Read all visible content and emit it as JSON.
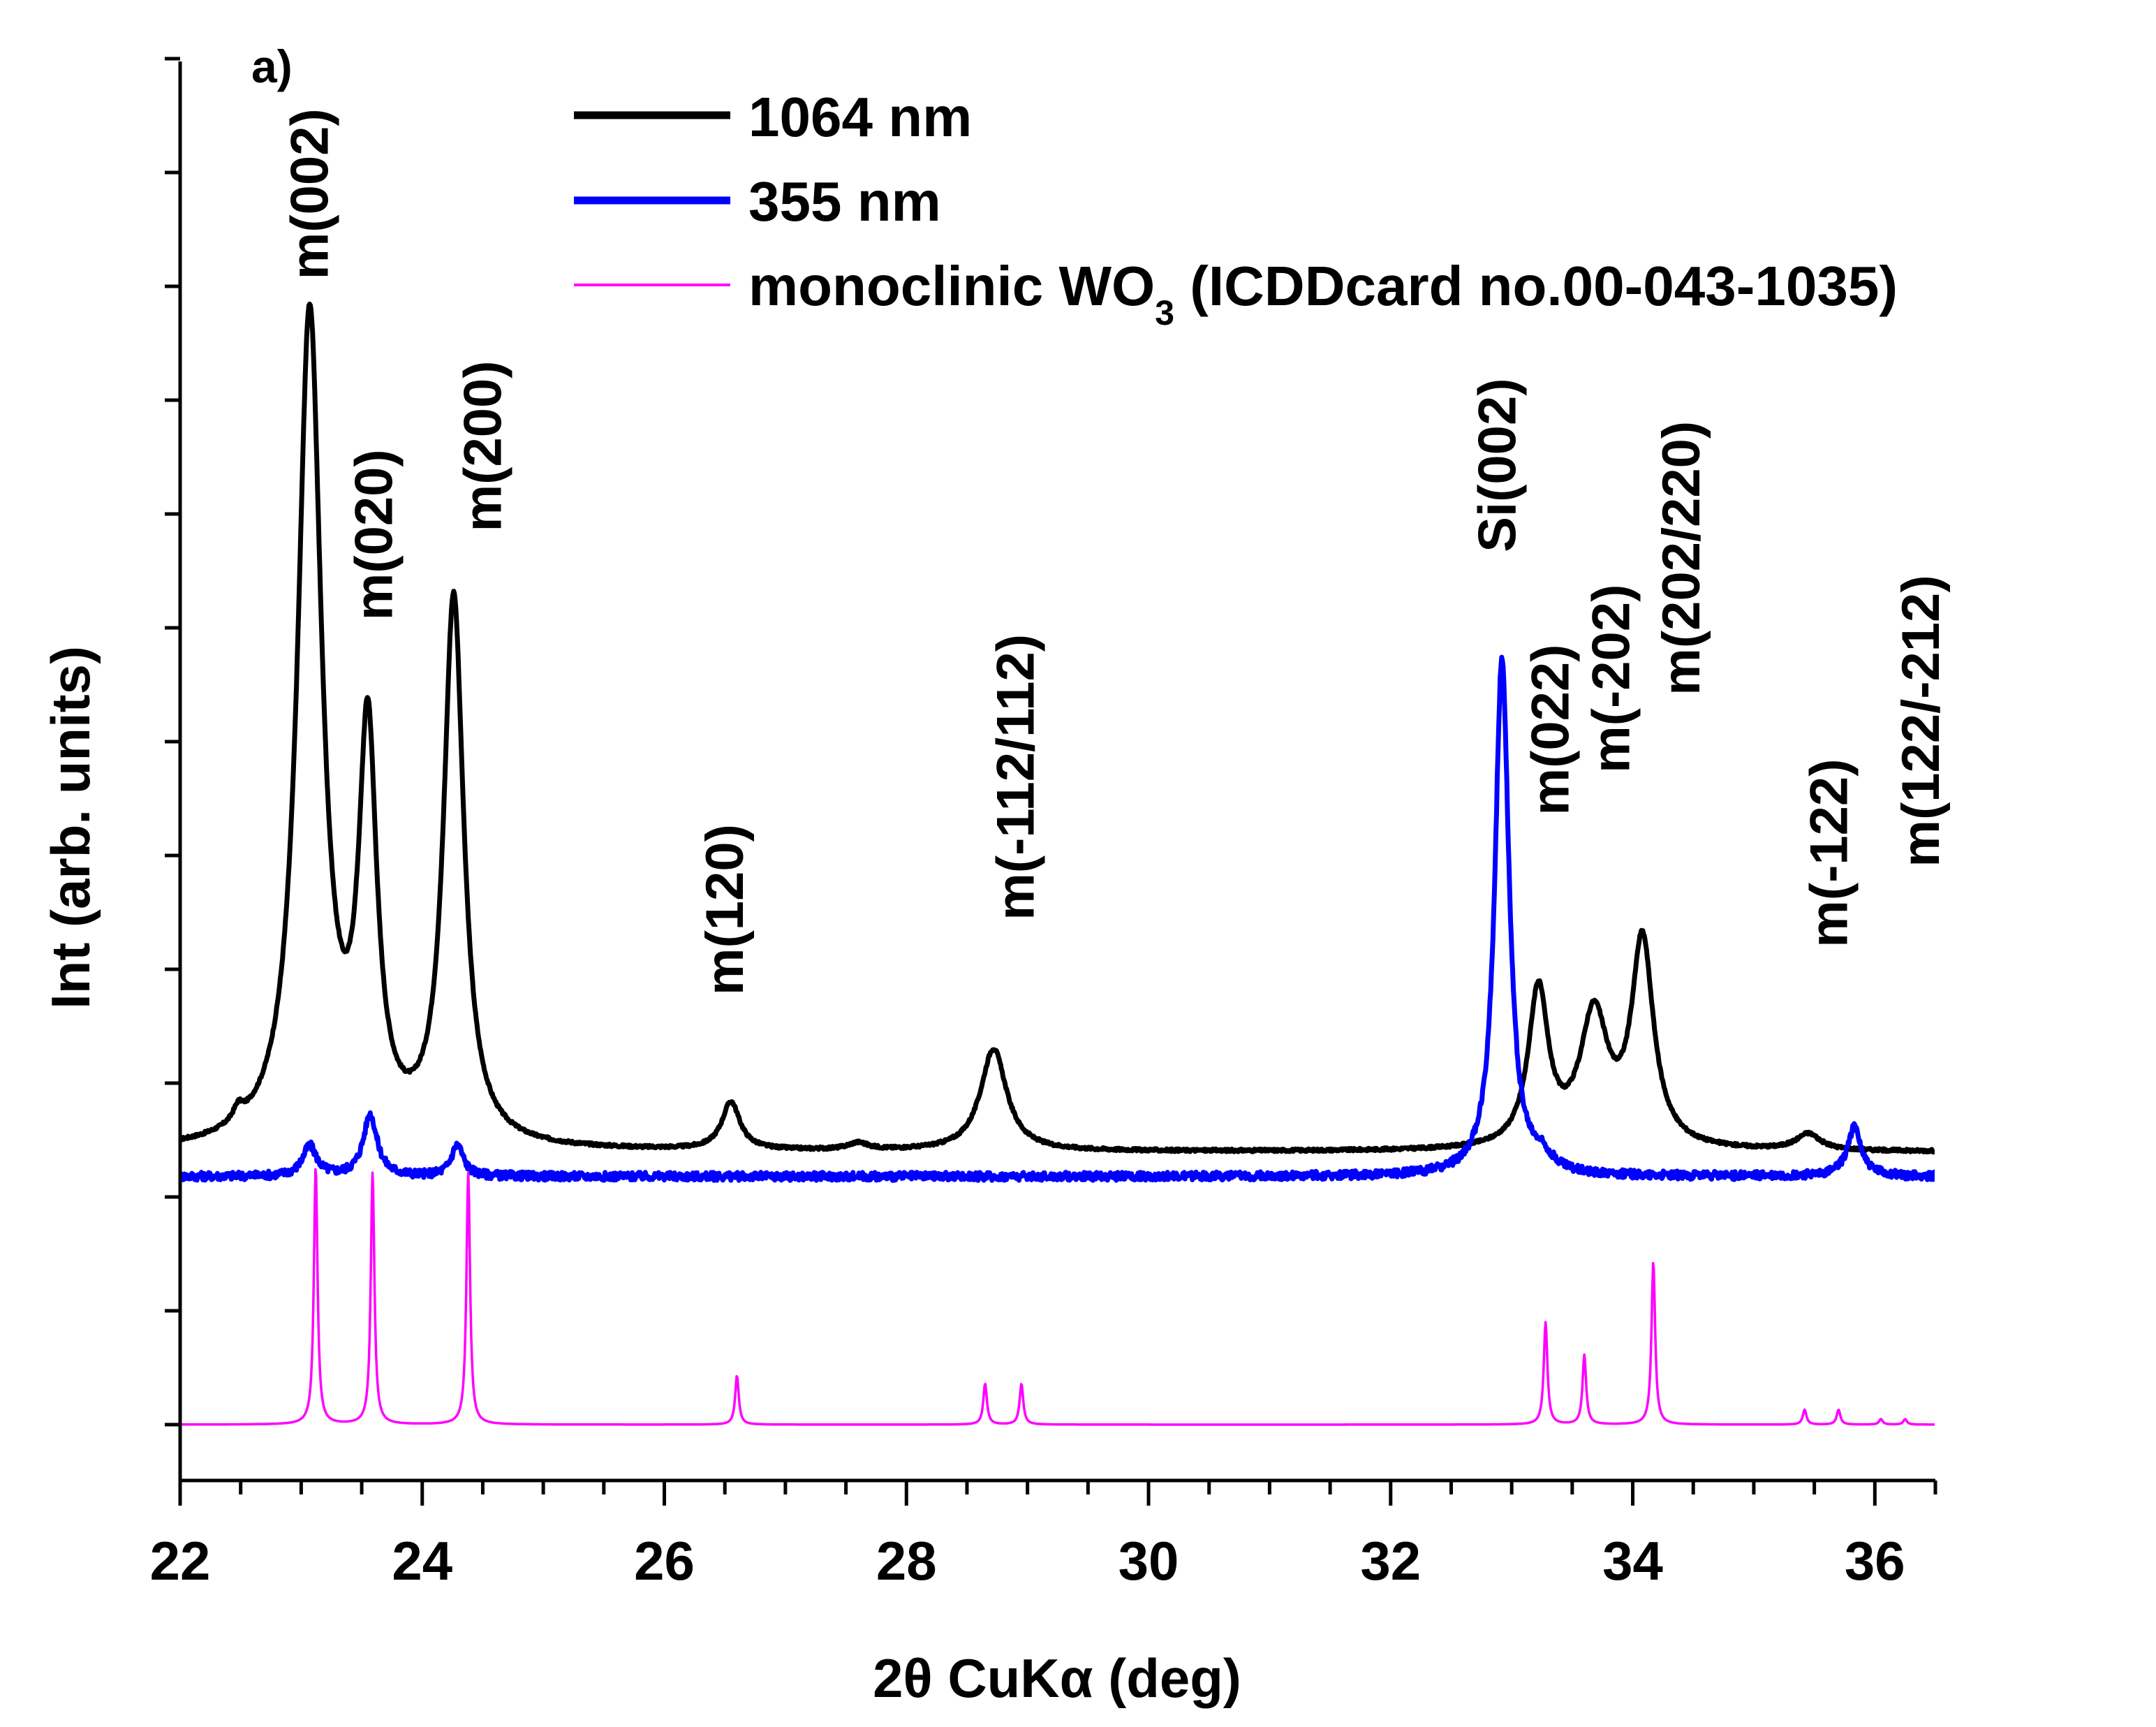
{
  "chart_data": {
    "type": "line",
    "panel_label": "a)",
    "xlabel": "2θ  CuKα (deg)",
    "ylabel": "Int (arb. units)",
    "xlim": [
      22,
      36.5
    ],
    "ylim": [
      0,
      1
    ],
    "x_ticks": [
      "22",
      "24",
      "26",
      "28",
      "30",
      "32",
      "34",
      "36"
    ],
    "legend": [
      {
        "label": "1064 nm",
        "color": "#000000"
      },
      {
        "label": "355 nm",
        "color": "#0000ff"
      },
      {
        "label": "monoclinic WO",
        "sub": "3",
        "suffix": " (ICDDcard no.00-043-1035)",
        "color": "#ff00ff"
      }
    ],
    "series": [
      {
        "name": "1064 nm",
        "color": "#000000",
        "baseline": 0.2,
        "peaks": [
          {
            "x": 22.48,
            "h": 0.01,
            "w": 0.05
          },
          {
            "x": 23.07,
            "h": 0.61,
            "w": 0.12
          },
          {
            "x": 23.55,
            "h": 0.29,
            "w": 0.09
          },
          {
            "x": 24.26,
            "h": 0.4,
            "w": 0.1
          },
          {
            "x": 26.55,
            "h": 0.035,
            "w": 0.09
          },
          {
            "x": 27.6,
            "h": 0.005,
            "w": 0.1
          },
          {
            "x": 28.72,
            "h": 0.075,
            "w": 0.13
          },
          {
            "x": 33.22,
            "h": 0.115,
            "w": 0.1
          },
          {
            "x": 33.68,
            "h": 0.095,
            "w": 0.14
          },
          {
            "x": 34.08,
            "h": 0.15,
            "w": 0.11
          },
          {
            "x": 35.45,
            "h": 0.012,
            "w": 0.12
          }
        ]
      },
      {
        "name": "355 nm",
        "color": "#0000ff",
        "baseline": 0.182,
        "peaks": [
          {
            "x": 23.07,
            "h": 0.022,
            "w": 0.07
          },
          {
            "x": 23.57,
            "h": 0.045,
            "w": 0.07
          },
          {
            "x": 24.29,
            "h": 0.023,
            "w": 0.06
          },
          {
            "x": 32.92,
            "h": 0.38,
            "w": 0.07
          },
          {
            "x": 33.25,
            "h": 0.01,
            "w": 0.1
          },
          {
            "x": 35.83,
            "h": 0.036,
            "w": 0.07
          }
        ]
      },
      {
        "name": "monoclinic WO3 (ICDDcard no.00-043-1035)",
        "color": "#ff00ff",
        "baseline": 0.0,
        "peaks": [
          {
            "x": 23.12,
            "h": 0.19,
            "w": 0.018
          },
          {
            "x": 23.59,
            "h": 0.185,
            "w": 0.018
          },
          {
            "x": 24.38,
            "h": 0.185,
            "w": 0.018
          },
          {
            "x": 26.6,
            "h": 0.036,
            "w": 0.018
          },
          {
            "x": 28.65,
            "h": 0.03,
            "w": 0.018
          },
          {
            "x": 28.95,
            "h": 0.03,
            "w": 0.018
          },
          {
            "x": 33.28,
            "h": 0.075,
            "w": 0.018
          },
          {
            "x": 33.6,
            "h": 0.051,
            "w": 0.018
          },
          {
            "x": 34.17,
            "h": 0.12,
            "w": 0.018
          },
          {
            "x": 35.42,
            "h": 0.011,
            "w": 0.018
          },
          {
            "x": 35.7,
            "h": 0.011,
            "w": 0.018
          },
          {
            "x": 36.05,
            "h": 0.004,
            "w": 0.018
          },
          {
            "x": 36.25,
            "h": 0.004,
            "w": 0.018
          }
        ]
      }
    ],
    "annotations": [
      {
        "text": "m(002)",
        "x": 23.07,
        "y": 0.84
      },
      {
        "text": "m(020)",
        "x": 23.6,
        "y": 0.59
      },
      {
        "text": "m(200)",
        "x": 24.5,
        "y": 0.655
      },
      {
        "text": "m(120)",
        "x": 26.5,
        "y": 0.315
      },
      {
        "text": "m(-112/112)",
        "x": 28.9,
        "y": 0.37
      },
      {
        "text": "Si(002)",
        "x": 32.88,
        "y": 0.64
      },
      {
        "text": "m(022)",
        "x": 33.32,
        "y": 0.447
      },
      {
        "text": "m(-202)",
        "x": 33.82,
        "y": 0.478
      },
      {
        "text": "m(202/220)",
        "x": 34.4,
        "y": 0.535
      },
      {
        "text": "m(-122)",
        "x": 35.62,
        "y": 0.35
      },
      {
        "text": "m(122/-212)",
        "x": 36.38,
        "y": 0.409
      }
    ]
  }
}
